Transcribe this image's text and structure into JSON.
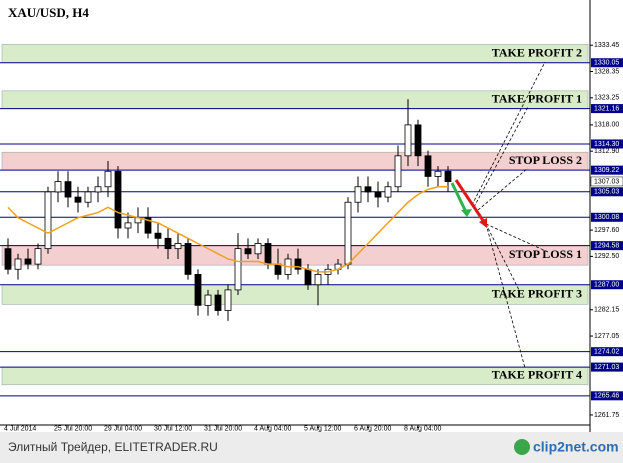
{
  "chart_data": {
    "type": "candlestick",
    "title": "XAU/USD, H4",
    "categories": [
      null,
      "4 Jul 2014",
      null,
      null,
      null,
      null,
      "25 Jul 20:00",
      null,
      null,
      null,
      null,
      "29 Jul 04:00",
      null,
      null,
      null,
      null,
      "30 Jul 12:00",
      null,
      null,
      null,
      null,
      "31 Jul 20:00",
      null,
      null,
      null,
      null,
      "4 Aug 04:00",
      null,
      null,
      null,
      null,
      "5 Aug 12:00",
      null,
      null,
      null,
      null,
      "6 Aug 20:00",
      null,
      null,
      null,
      null,
      "8 Aug 04:00",
      null,
      null,
      null
    ],
    "open": [
      1294,
      1290,
      1292,
      1291,
      1294,
      1305,
      1307,
      1304,
      1303,
      1305,
      1306,
      1309,
      1298,
      1299,
      1300,
      1297,
      1296,
      1294,
      1295,
      1289,
      1283,
      1285,
      1282,
      1286,
      1294,
      1293,
      1295,
      1291,
      1289,
      1292,
      1290,
      1287,
      1289,
      1290,
      1291,
      1303,
      1306,
      1305,
      1304,
      1306,
      1312,
      1318,
      1312,
      1308,
      1309
    ],
    "high": [
      1296,
      1293,
      1294,
      1295,
      1306,
      1309,
      1309,
      1306,
      1306,
      1308,
      1311,
      1310,
      1301,
      1302,
      1302,
      1299,
      1298,
      1297,
      1296,
      1290,
      1286,
      1286,
      1287,
      1297,
      1296,
      1296,
      1296,
      1294,
      1293,
      1294,
      1291,
      1290,
      1291,
      1292,
      1304,
      1308,
      1308,
      1307,
      1307,
      1314,
      1323,
      1319,
      1313,
      1310,
      1310
    ],
    "low": [
      1289,
      1288,
      1290,
      1290,
      1293,
      1303,
      1302,
      1301,
      1302,
      1303,
      1304,
      1296,
      1296,
      1297,
      1296,
      1294,
      1292,
      1292,
      1288,
      1281,
      1281,
      1281,
      1280,
      1285,
      1292,
      1292,
      1290,
      1288,
      1288,
      1289,
      1286,
      1283,
      1287,
      1289,
      1290,
      1301,
      1303,
      1302,
      1303,
      1305,
      1310,
      1310,
      1306,
      1306,
      1305
    ],
    "close": [
      1290,
      1292,
      1291,
      1294,
      1305,
      1307,
      1304,
      1303,
      1305,
      1306,
      1309,
      1298,
      1299,
      1300,
      1297,
      1296,
      1294,
      1295,
      1289,
      1283,
      1285,
      1282,
      1286,
      1294,
      1293,
      1295,
      1291,
      1289,
      1292,
      1290,
      1287,
      1289,
      1290,
      1291,
      1303,
      1306,
      1305,
      1304,
      1306,
      1312,
      1318,
      1312,
      1308,
      1309,
      1307
    ],
    "colors": {
      "up": "#ffffff",
      "down": "#000000",
      "outline": "#000000"
    },
    "ma": {
      "color": "#f0a020",
      "values": [
        1302,
        1300,
        1299,
        1298,
        1297,
        1298,
        1299,
        1300,
        1300.5,
        1301,
        1302,
        1301,
        1300.5,
        1300,
        1299.5,
        1299,
        1298,
        1297,
        1296,
        1295,
        1294,
        1293,
        1292,
        1291.5,
        1291.5,
        1291.5,
        1291,
        1291,
        1290.5,
        1290.5,
        1290,
        1289.5,
        1289.5,
        1290,
        1291,
        1293,
        1295,
        1297,
        1299,
        1301,
        1303,
        1304.5,
        1305.5,
        1306,
        1306
      ]
    },
    "ylim": [
      1259.8,
      1336.4
    ],
    "yticks": [
      {
        "value": 1333.45,
        "label": "1333.45"
      },
      {
        "value": 1328.35,
        "label": "1328.35"
      },
      {
        "value": 1323.25,
        "label": "1323.25"
      },
      {
        "value": 1318.0,
        "label": "1318.00"
      },
      {
        "value": 1312.9,
        "label": "1312.90"
      },
      {
        "value": 1297.6,
        "label": "1297.60"
      },
      {
        "value": 1292.5,
        "label": "1292.50"
      },
      {
        "value": 1282.15,
        "label": "1282.15"
      },
      {
        "value": 1277.05,
        "label": "1277.05"
      },
      {
        "value": 1261.75,
        "label": "1261.75"
      }
    ],
    "levels": [
      {
        "value": 1330.05,
        "label": "1330.05"
      },
      {
        "value": 1321.16,
        "label": "1321.16"
      },
      {
        "value": 1314.3,
        "label": "1314.30"
      },
      {
        "value": 1309.22,
        "label": "1309.22"
      },
      {
        "value": 1305.03,
        "label": "1305.03"
      },
      {
        "value": 1300.08,
        "label": "1300.08"
      },
      {
        "value": 1294.58,
        "label": "1294.58"
      },
      {
        "value": 1287.0,
        "label": "1287.00"
      },
      {
        "value": 1274.02,
        "label": "1274.02"
      },
      {
        "value": 1271.03,
        "label": "1271.03"
      },
      {
        "value": 1265.46,
        "label": "1265.46"
      }
    ],
    "level_color": "#00008b",
    "current_price": {
      "value": 1307.03,
      "label": "1307.03"
    },
    "zones": [
      {
        "label": "TAKE PROFIT  2",
        "low": 1330.05,
        "high": 1333.6,
        "color": "#d9ecc9"
      },
      {
        "label": "TAKE PROFIT  1",
        "low": 1321.16,
        "high": 1324.6,
        "color": "#d9ecc9"
      },
      {
        "label": "STOP LOSS 2",
        "low": 1309.22,
        "high": 1312.7,
        "color": "#f3cfcf"
      },
      {
        "label": "STOP LOSS 1",
        "low": 1290.8,
        "high": 1294.58,
        "color": "#f3cfcf"
      },
      {
        "label": "TAKE PROFIT 3",
        "low": 1283.2,
        "high": 1287.0,
        "color": "#d9ecc9"
      },
      {
        "label": "TAKE PROFIT 4",
        "low": 1267.6,
        "high": 1271.03,
        "color": "#d9ecc9"
      }
    ]
  },
  "footer": {
    "source": "Элитный Трейдер, ELITETRADER.RU",
    "logo": "clip2net.com"
  }
}
